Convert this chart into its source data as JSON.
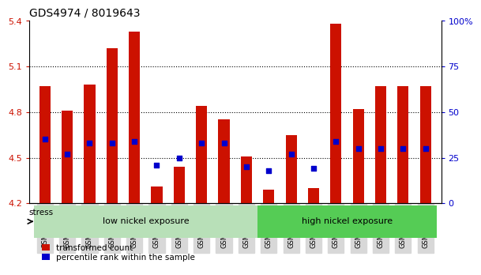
{
  "title": "GDS4974 / 8019643",
  "samples": [
    "GSM992693",
    "GSM992694",
    "GSM992695",
    "GSM992696",
    "GSM992697",
    "GSM992698",
    "GSM992699",
    "GSM992700",
    "GSM992701",
    "GSM992702",
    "GSM992703",
    "GSM992704",
    "GSM992705",
    "GSM992706",
    "GSM992707",
    "GSM992708",
    "GSM992709",
    "GSM992710"
  ],
  "transformed_count": [
    4.97,
    4.81,
    4.98,
    5.22,
    5.33,
    4.31,
    4.44,
    4.84,
    4.75,
    4.51,
    4.29,
    4.65,
    4.3,
    5.38,
    4.82,
    4.97,
    4.97,
    4.97
  ],
  "percentile_rank": [
    35,
    27,
    33,
    33,
    34,
    21,
    25,
    33,
    33,
    20,
    18,
    27,
    19,
    34,
    30,
    30,
    30,
    30
  ],
  "ylim_left": [
    4.2,
    5.4
  ],
  "ylim_right": [
    0,
    100
  ],
  "yticks_left": [
    4.2,
    4.5,
    4.8,
    5.1,
    5.4
  ],
  "yticks_right": [
    0,
    25,
    50,
    75,
    100
  ],
  "bar_color": "#cc1100",
  "percentile_color": "#0000cc",
  "low_nickel_count": 10,
  "high_nickel_count": 8,
  "group_low_label": "low nickel exposure",
  "group_high_label": "high nickel exposure",
  "group_low_color": "#b8e0b8",
  "group_high_color": "#55cc55",
  "stress_label": "stress",
  "legend_bar_label": "transformed count",
  "legend_pct_label": "percentile rank within the sample",
  "title_fontsize": 10,
  "axis_label_color_left": "#cc1100",
  "axis_label_color_right": "#0000cc",
  "bar_width": 0.5,
  "base_value": 4.2,
  "grid_lines": [
    4.5,
    4.8,
    5.1
  ],
  "bg_color": "#ffffff",
  "xticklabel_bg": "#d8d8d8"
}
